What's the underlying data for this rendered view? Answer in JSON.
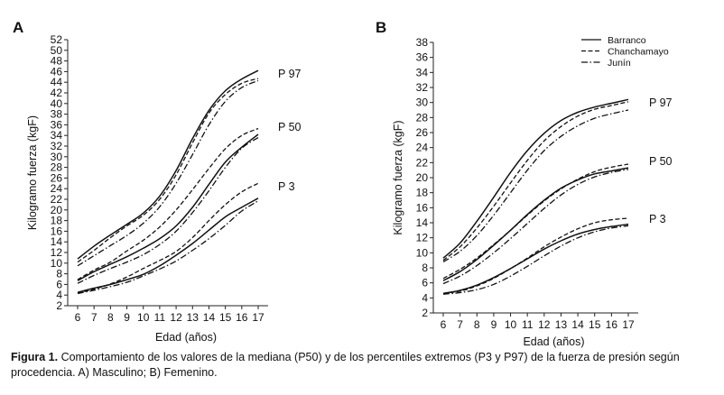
{
  "caption": {
    "label": "Figura 1.",
    "text": "Comportamiento de los valores de la mediana (P50) y de los percentiles extremos (P3 y P97) de la fuerza de presión según procedencia. A) Masculino; B) Femenino."
  },
  "legend": {
    "placement": "top-right of panel B",
    "entries": [
      {
        "name": "Barranco",
        "style": "solid"
      },
      {
        "name": "Chanchamayo",
        "style": "dashed"
      },
      {
        "name": "Junín",
        "style": "dashdot"
      }
    ]
  },
  "chart_data": [
    {
      "type": "line",
      "panel_label": "A",
      "xlabel": "Edad (años)",
      "ylabel": "Kilogramo fuerza (kgF)",
      "xlim": [
        6,
        17
      ],
      "ylim": [
        2,
        52
      ],
      "xticks": [
        6,
        7,
        8,
        9,
        10,
        11,
        12,
        13,
        14,
        15,
        16,
        17
      ],
      "yticks": [
        2,
        4,
        6,
        8,
        10,
        12,
        14,
        16,
        18,
        20,
        22,
        24,
        26,
        28,
        30,
        32,
        34,
        36,
        38,
        40,
        42,
        44,
        46,
        48,
        50,
        52
      ],
      "grid": false,
      "curve_labels": [
        "P 97",
        "P 50",
        "P 3"
      ],
      "x": [
        6,
        7,
        8,
        9,
        10,
        11,
        12,
        13,
        14,
        15,
        16,
        17
      ],
      "series": [
        {
          "group": "Barranco",
          "percentile": "P97",
          "style": "solid",
          "values": [
            10.8,
            13.2,
            15.3,
            17.3,
            19.4,
            22.6,
            27.4,
            33.4,
            38.7,
            42.4,
            44.6,
            46.2
          ]
        },
        {
          "group": "Chanchamayo",
          "percentile": "P97",
          "style": "dashed",
          "values": [
            10.2,
            12.4,
            14.8,
            17.0,
            19.0,
            22.0,
            26.6,
            32.6,
            38.2,
            41.7,
            43.8,
            44.7
          ]
        },
        {
          "group": "Junín",
          "percentile": "P97",
          "style": "dashdot",
          "values": [
            9.5,
            11.4,
            13.3,
            15.2,
            17.5,
            20.6,
            25.0,
            30.4,
            36.0,
            40.4,
            43.0,
            44.3
          ]
        },
        {
          "group": "Barranco",
          "percentile": "P50",
          "style": "solid",
          "values": [
            6.7,
            8.4,
            9.8,
            11.2,
            12.8,
            14.6,
            17.0,
            20.5,
            24.8,
            29.0,
            31.8,
            34.2
          ]
        },
        {
          "group": "Chanchamayo",
          "percentile": "P50",
          "style": "dashed",
          "values": [
            6.9,
            8.7,
            10.2,
            12.3,
            14.3,
            16.8,
            20.0,
            23.8,
            27.8,
            31.5,
            34.0,
            35.3
          ]
        },
        {
          "group": "Junín",
          "percentile": "P50",
          "style": "dashdot",
          "values": [
            6.2,
            7.7,
            9.0,
            10.2,
            11.6,
            13.5,
            16.0,
            19.5,
            23.6,
            28.0,
            31.6,
            33.6
          ]
        },
        {
          "group": "Barranco",
          "percentile": "P3",
          "style": "solid",
          "values": [
            4.5,
            5.3,
            6.0,
            6.9,
            7.9,
            9.5,
            11.5,
            13.7,
            16.2,
            18.7,
            20.5,
            22.2
          ]
        },
        {
          "group": "Chanchamayo",
          "percentile": "P3",
          "style": "dashed",
          "values": [
            4.4,
            5.1,
            6.1,
            7.4,
            9.0,
            10.5,
            12.2,
            14.8,
            18.0,
            21.0,
            23.4,
            25.0
          ]
        },
        {
          "group": "Junín",
          "percentile": "P3",
          "style": "dashdot",
          "values": [
            4.3,
            4.9,
            5.6,
            6.4,
            7.6,
            8.9,
            10.4,
            12.4,
            14.6,
            17.1,
            19.8,
            21.7
          ]
        }
      ]
    },
    {
      "type": "line",
      "panel_label": "B",
      "xlabel": "Edad (años)",
      "ylabel": "Kilogramo fuerza (kgF)",
      "xlim": [
        6,
        17
      ],
      "ylim": [
        2,
        38
      ],
      "xticks": [
        6,
        7,
        8,
        9,
        10,
        11,
        12,
        13,
        14,
        15,
        16,
        17
      ],
      "yticks": [
        2,
        4,
        6,
        8,
        10,
        12,
        14,
        16,
        18,
        20,
        22,
        24,
        26,
        28,
        30,
        32,
        34,
        36,
        38
      ],
      "grid": false,
      "curve_labels": [
        "P 97",
        "P 50",
        "P 3"
      ],
      "x": [
        6,
        7,
        8,
        9,
        10,
        11,
        12,
        13,
        14,
        15,
        16,
        17
      ],
      "series": [
        {
          "group": "Barranco",
          "percentile": "P97",
          "style": "solid",
          "values": [
            9.3,
            11.3,
            14.2,
            17.4,
            20.7,
            23.6,
            25.9,
            27.6,
            28.7,
            29.4,
            29.9,
            30.4
          ]
        },
        {
          "group": "Chanchamayo",
          "percentile": "P97",
          "style": "dashed",
          "values": [
            9.0,
            10.8,
            13.3,
            16.2,
            19.3,
            22.3,
            24.9,
            26.8,
            28.2,
            29.1,
            29.6,
            30.1
          ]
        },
        {
          "group": "Junín",
          "percentile": "P97",
          "style": "dashdot",
          "values": [
            8.8,
            10.2,
            12.3,
            15.0,
            18.0,
            21.0,
            23.6,
            25.5,
            26.9,
            27.9,
            28.5,
            29.0
          ]
        },
        {
          "group": "Barranco",
          "percentile": "P50",
          "style": "solid",
          "values": [
            6.3,
            7.5,
            9.1,
            11.0,
            13.0,
            15.1,
            17.0,
            18.6,
            19.7,
            20.5,
            20.9,
            21.3
          ]
        },
        {
          "group": "Chanchamayo",
          "percentile": "P50",
          "style": "dashed",
          "values": [
            6.6,
            7.8,
            9.3,
            11.1,
            13.0,
            15.0,
            16.9,
            18.5,
            19.8,
            20.8,
            21.4,
            21.8
          ]
        },
        {
          "group": "Junín",
          "percentile": "P50",
          "style": "dashdot",
          "values": [
            5.9,
            6.9,
            8.3,
            10.0,
            11.9,
            13.9,
            15.9,
            17.7,
            19.1,
            20.1,
            20.7,
            21.1
          ]
        },
        {
          "group": "Barranco",
          "percentile": "P3",
          "style": "solid",
          "values": [
            4.6,
            5.0,
            5.7,
            6.7,
            7.9,
            9.2,
            10.5,
            11.6,
            12.5,
            13.1,
            13.5,
            13.8
          ]
        },
        {
          "group": "Chanchamayo",
          "percentile": "P3",
          "style": "dashed",
          "values": [
            4.6,
            4.9,
            5.6,
            6.6,
            7.9,
            9.3,
            10.8,
            12.1,
            13.2,
            14.0,
            14.4,
            14.6
          ]
        },
        {
          "group": "Junín",
          "percentile": "P3",
          "style": "dashdot",
          "values": [
            4.5,
            4.7,
            5.1,
            5.8,
            6.9,
            8.2,
            9.6,
            10.9,
            12.0,
            12.8,
            13.3,
            13.6
          ]
        }
      ]
    }
  ]
}
